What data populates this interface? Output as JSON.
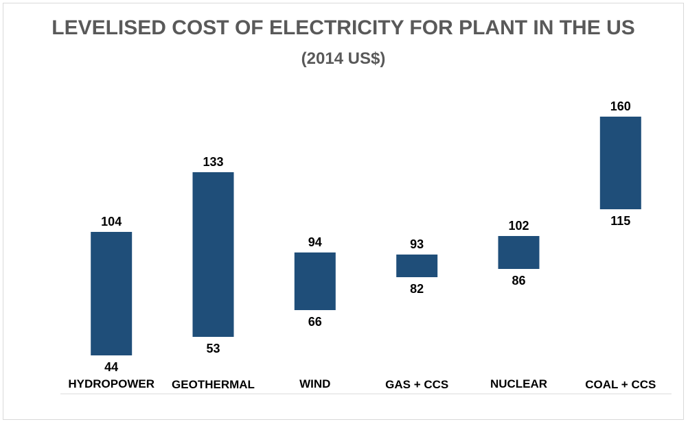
{
  "chart_data": {
    "type": "floating-bar",
    "title": "LEVELISED COST OF ELECTRICITY FOR PLANT IN THE US",
    "subtitle": "(2014 US$)",
    "xlabel": "",
    "ylabel": "",
    "categories": [
      "HYDROPOWER",
      "GEOTHERMAL",
      "WIND",
      "GAS + CCS",
      "NUCLEAR",
      "COAL + CCS"
    ],
    "series": [
      {
        "name": "Low",
        "values": [
          44,
          53,
          66,
          82,
          86,
          115
        ]
      },
      {
        "name": "High",
        "values": [
          104,
          133,
          94,
          93,
          102,
          160
        ]
      }
    ],
    "ylim": [
      0,
      170
    ],
    "grid": false,
    "legend": "none",
    "colors": {
      "bar": "#1f4e79",
      "title": "#595959",
      "axis": "#d9d9d9"
    }
  }
}
